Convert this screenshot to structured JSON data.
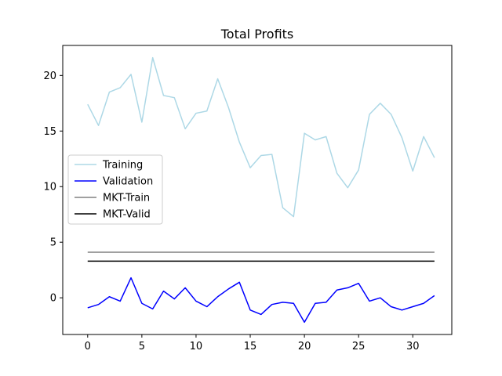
{
  "chart_data": {
    "type": "line",
    "title": "Total Profits",
    "xlabel": "",
    "ylabel": "",
    "xlim": [
      -2.3,
      33.6
    ],
    "ylim": [
      -3.3,
      22.7
    ],
    "xticks": [
      0,
      5,
      10,
      15,
      20,
      25,
      30
    ],
    "yticks": [
      0,
      5,
      10,
      15,
      20
    ],
    "grid": false,
    "legend_position": "center-left",
    "x": [
      0,
      1,
      2,
      3,
      4,
      5,
      6,
      7,
      8,
      9,
      10,
      11,
      12,
      13,
      14,
      15,
      16,
      17,
      18,
      19,
      20,
      21,
      22,
      23,
      24,
      25,
      26,
      27,
      28,
      29,
      30,
      31,
      32
    ],
    "series": [
      {
        "name": "Training",
        "color": "#add8e6",
        "values": [
          17.4,
          15.5,
          18.5,
          18.9,
          20.1,
          15.8,
          21.6,
          18.2,
          18.0,
          15.2,
          16.6,
          16.8,
          19.7,
          17.1,
          14.0,
          11.7,
          12.8,
          12.9,
          8.1,
          7.3,
          14.8,
          14.2,
          14.5,
          11.2,
          9.9,
          11.5,
          16.5,
          17.5,
          16.5,
          14.4,
          11.4,
          14.5,
          12.6
        ]
      },
      {
        "name": "Validation",
        "color": "#0000ff",
        "values": [
          -0.9,
          -0.6,
          0.1,
          -0.3,
          1.8,
          -0.5,
          -1.0,
          0.6,
          -0.1,
          0.9,
          -0.3,
          -0.8,
          0.1,
          0.8,
          1.4,
          -1.1,
          -1.5,
          -0.6,
          -0.4,
          -0.5,
          -2.2,
          -0.5,
          -0.4,
          0.7,
          0.9,
          1.3,
          -0.3,
          0.0,
          -0.8,
          -1.1,
          -0.8,
          -0.5,
          0.2
        ]
      },
      {
        "name": "MKT-Train",
        "color": "#808080",
        "values": [
          4.1,
          4.1,
          4.1,
          4.1,
          4.1,
          4.1,
          4.1,
          4.1,
          4.1,
          4.1,
          4.1,
          4.1,
          4.1,
          4.1,
          4.1,
          4.1,
          4.1,
          4.1,
          4.1,
          4.1,
          4.1,
          4.1,
          4.1,
          4.1,
          4.1,
          4.1,
          4.1,
          4.1,
          4.1,
          4.1,
          4.1,
          4.1,
          4.1
        ]
      },
      {
        "name": "MKT-Valid",
        "color": "#000000",
        "values": [
          3.3,
          3.3,
          3.3,
          3.3,
          3.3,
          3.3,
          3.3,
          3.3,
          3.3,
          3.3,
          3.3,
          3.3,
          3.3,
          3.3,
          3.3,
          3.3,
          3.3,
          3.3,
          3.3,
          3.3,
          3.3,
          3.3,
          3.3,
          3.3,
          3.3,
          3.3,
          3.3,
          3.3,
          3.3,
          3.3,
          3.3,
          3.3,
          3.3
        ]
      }
    ]
  }
}
